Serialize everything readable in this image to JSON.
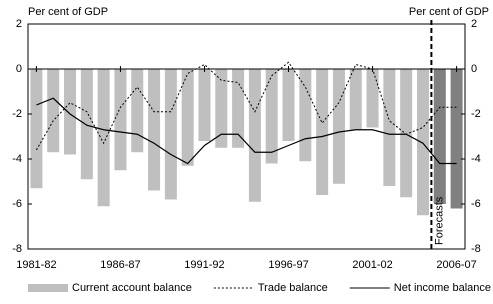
{
  "chart_data": {
    "type": "combo",
    "y_label": "Per cent of GDP",
    "y2_label": "Per cent of GDP",
    "annotation": "Forecasts",
    "categories": [
      "1981-82",
      null,
      null,
      null,
      null,
      "1986-87",
      null,
      null,
      null,
      null,
      "1991-92",
      null,
      null,
      null,
      null,
      "1996-97",
      null,
      null,
      null,
      null,
      "2001-02",
      null,
      null,
      null,
      null,
      "2006-07"
    ],
    "ylim": [
      -8,
      2
    ],
    "yticks": [
      -8,
      -6,
      -4,
      -2,
      0,
      2
    ],
    "y2lim": [
      -8,
      2
    ],
    "y2ticks": [
      -8,
      -6,
      -4,
      -2,
      0,
      2
    ],
    "series": [
      {
        "name": "Current account balance",
        "type": "bar",
        "color": "#bfbfbf",
        "colors": [
          "#bfbfbf",
          "#bfbfbf",
          "#bfbfbf",
          "#bfbfbf",
          "#bfbfbf",
          "#bfbfbf",
          "#bfbfbf",
          "#bfbfbf",
          "#bfbfbf",
          "#bfbfbf",
          "#bfbfbf",
          "#bfbfbf",
          "#bfbfbf",
          "#bfbfbf",
          "#bfbfbf",
          "#bfbfbf",
          "#bfbfbf",
          "#bfbfbf",
          "#bfbfbf",
          "#bfbfbf",
          "#bfbfbf",
          "#bfbfbf",
          "#bfbfbf",
          "#bfbfbf",
          "#808080",
          "#808080"
        ],
        "values": [
          -5.3,
          -3.7,
          -3.8,
          -4.9,
          -6.1,
          -4.5,
          -3.7,
          -5.4,
          -5.8,
          -4.3,
          -3.2,
          -3.5,
          -3.5,
          -5.9,
          -4.2,
          -3.2,
          -4.1,
          -5.6,
          -5.1,
          -2.7,
          -2.6,
          -5.2,
          -5.7,
          -6.5,
          -6.0,
          -6.2
        ]
      },
      {
        "name": "Trade balance",
        "type": "line",
        "style": "dotted",
        "color": "#000000",
        "values": [
          -3.6,
          -2.3,
          -1.5,
          -1.9,
          -3.3,
          -1.7,
          -0.8,
          -1.9,
          -1.9,
          -0.2,
          0.2,
          -0.5,
          -0.6,
          -1.9,
          -0.3,
          0.3,
          -0.8,
          -2.4,
          -1.5,
          0.2,
          0.0,
          -2.3,
          -2.9,
          -2.6,
          -1.7,
          -1.7
        ]
      },
      {
        "name": "Net income balance",
        "type": "line",
        "style": "solid",
        "color": "#000000",
        "values": [
          -1.6,
          -1.3,
          -2.0,
          -2.5,
          -2.7,
          -2.8,
          -2.9,
          -3.3,
          -3.8,
          -4.2,
          -3.4,
          -2.9,
          -2.9,
          -3.7,
          -3.7,
          -3.4,
          -3.1,
          -3.0,
          -2.8,
          -2.7,
          -2.7,
          -2.9,
          -2.9,
          -3.3,
          -4.2,
          -4.2
        ]
      }
    ]
  }
}
